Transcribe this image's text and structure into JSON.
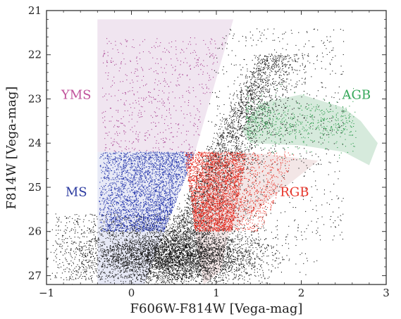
{
  "chart_data": {
    "type": "scatter",
    "title": "",
    "xlabel": "F606W-F814W [Vega-mag]",
    "ylabel": "F814W [Vega-mag]",
    "xlim": [
      -1,
      3
    ],
    "ylim": [
      27.2,
      21
    ],
    "y_inverted": true,
    "xticks": [
      -1,
      0,
      1,
      2,
      3
    ],
    "xtick_labels": [
      "−1",
      "0",
      "1",
      "2",
      "3"
    ],
    "yticks": [
      21,
      22,
      23,
      24,
      25,
      26,
      27
    ],
    "ytick_labels": [
      "21",
      "22",
      "23",
      "24",
      "25",
      "26",
      "27"
    ],
    "grid": false,
    "regions": [
      {
        "name": "YMS",
        "color": "#c0529b",
        "fill": "#9b4f9b",
        "fill_opacity": 0.15,
        "polygon": [
          [
            -0.4,
            21.2
          ],
          [
            1.2,
            21.2
          ],
          [
            0.75,
            24.2
          ],
          [
            -0.4,
            24.2
          ]
        ]
      },
      {
        "name": "MS",
        "color": "#2b3aa0",
        "fill": "#6f7fc8",
        "fill_opacity": 0.17,
        "polygon": [
          [
            -0.4,
            24.2
          ],
          [
            0.75,
            24.2
          ],
          [
            0.15,
            27.2
          ],
          [
            -0.4,
            27.2
          ]
        ]
      },
      {
        "name": "RGB",
        "color": "#e8352a",
        "fill": "#c98f8f",
        "fill_opacity": 0.22,
        "polygon": [
          [
            0.9,
            24.2
          ],
          [
            1.6,
            24.25
          ],
          [
            2.2,
            24.4
          ],
          [
            1.15,
            26.0
          ],
          [
            1.05,
            26.9
          ],
          [
            0.85,
            27.2
          ],
          [
            0.75,
            26.0
          ]
        ]
      },
      {
        "name": "AGB",
        "color": "#35a85a",
        "fill": "#6db383",
        "fill_opacity": 0.28,
        "polygon": [
          [
            1.3,
            23.7
          ],
          [
            1.5,
            23.1
          ],
          [
            2.0,
            22.9
          ],
          [
            2.5,
            23.2
          ],
          [
            2.7,
            23.5
          ],
          [
            2.9,
            24.0
          ],
          [
            2.8,
            24.5
          ],
          [
            2.5,
            24.2
          ],
          [
            2.0,
            24.05
          ],
          [
            1.4,
            24.0
          ]
        ]
      }
    ],
    "series": [
      {
        "color": "#111111",
        "approx_point_count": 9000
      },
      {
        "color": "#a63d8f",
        "approx_point_count": 600
      },
      {
        "color": "#2233aa",
        "approx_point_count": 3000
      },
      {
        "color": "#e62a1e",
        "approx_point_count": 3500
      },
      {
        "color": "#2a9a4a",
        "approx_point_count": 600
      }
    ]
  }
}
